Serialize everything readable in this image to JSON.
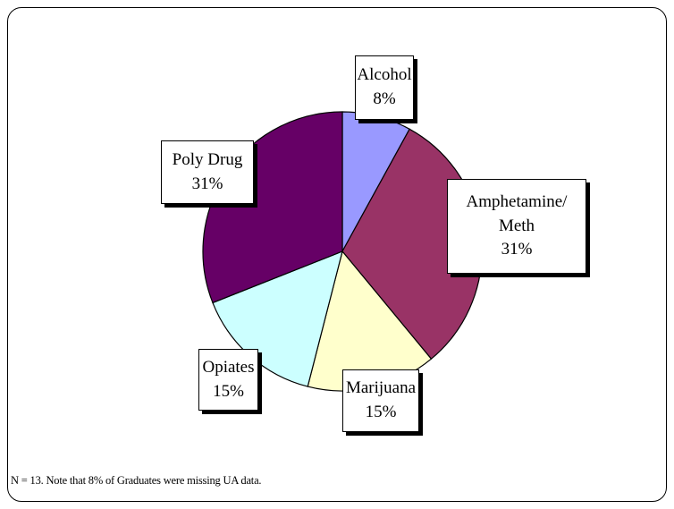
{
  "chart_data": {
    "type": "pie",
    "categories": [
      "Alcohol",
      "Amphetamine/ Meth",
      "Marijuana",
      "Opiates",
      "Poly Drug"
    ],
    "values": [
      8,
      31,
      15,
      15,
      31
    ],
    "value_labels": [
      "8%",
      "31%",
      "15%",
      "15%",
      "31%"
    ],
    "colors": [
      "#9999ff",
      "#993366",
      "#ffffcc",
      "#ccffff",
      "#660066"
    ],
    "note": "N = 13. Note that 8% of Graduates were missing UA data."
  }
}
